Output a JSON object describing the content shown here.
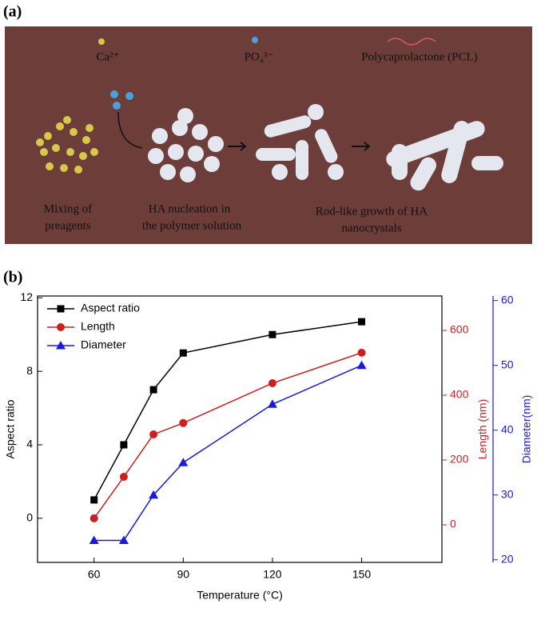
{
  "panel_labels": [
    "(a)",
    "(b)"
  ],
  "illustration": {
    "legend": [
      "Ca²⁺",
      "PO₄³⁻",
      "Polycaprolactone (PCL)"
    ],
    "steps": [
      [
        "Mixing of",
        "preagents"
      ],
      [
        "HA nucleation  in",
        "the polymer solution"
      ],
      [
        "Rod-like growth of HA",
        "nanocrystals"
      ]
    ]
  },
  "chart_data": {
    "type": "line",
    "xlabel": "Temperature  (°C)",
    "ylabel": "Aspect ratio",
    "y2label": "Length (nm)",
    "y3label": "Diameter(nm)",
    "x": [
      60,
      70,
      80,
      90,
      120,
      150
    ],
    "xlim": [
      41,
      177
    ],
    "xticks": [
      60,
      90,
      120,
      150
    ],
    "ylim": [
      -2.4,
      12.1
    ],
    "yticks": [
      0,
      4,
      8,
      12
    ],
    "y2lim": [
      -116,
      706
    ],
    "y2ticks": [
      0,
      200,
      400,
      600
    ],
    "y3lim": [
      19.6,
      60.7
    ],
    "y3ticks": [
      20,
      30,
      40,
      50,
      60
    ],
    "legend": "upper left",
    "series": [
      {
        "name": "Aspect ratio",
        "color": "#000000",
        "marker": "square",
        "values": [
          1.0,
          4.0,
          7.0,
          9.0,
          10.0,
          10.7
        ]
      },
      {
        "name": "Length",
        "color": "#cc1f1f",
        "marker": "circle",
        "axis": "y2",
        "values": [
          20,
          148,
          279,
          314,
          437,
          531
        ]
      },
      {
        "name": "Diameter",
        "color": "#1a1adb",
        "marker": "triangle",
        "axis": "y3",
        "values": [
          23,
          23,
          30,
          35,
          44,
          50
        ]
      }
    ]
  }
}
